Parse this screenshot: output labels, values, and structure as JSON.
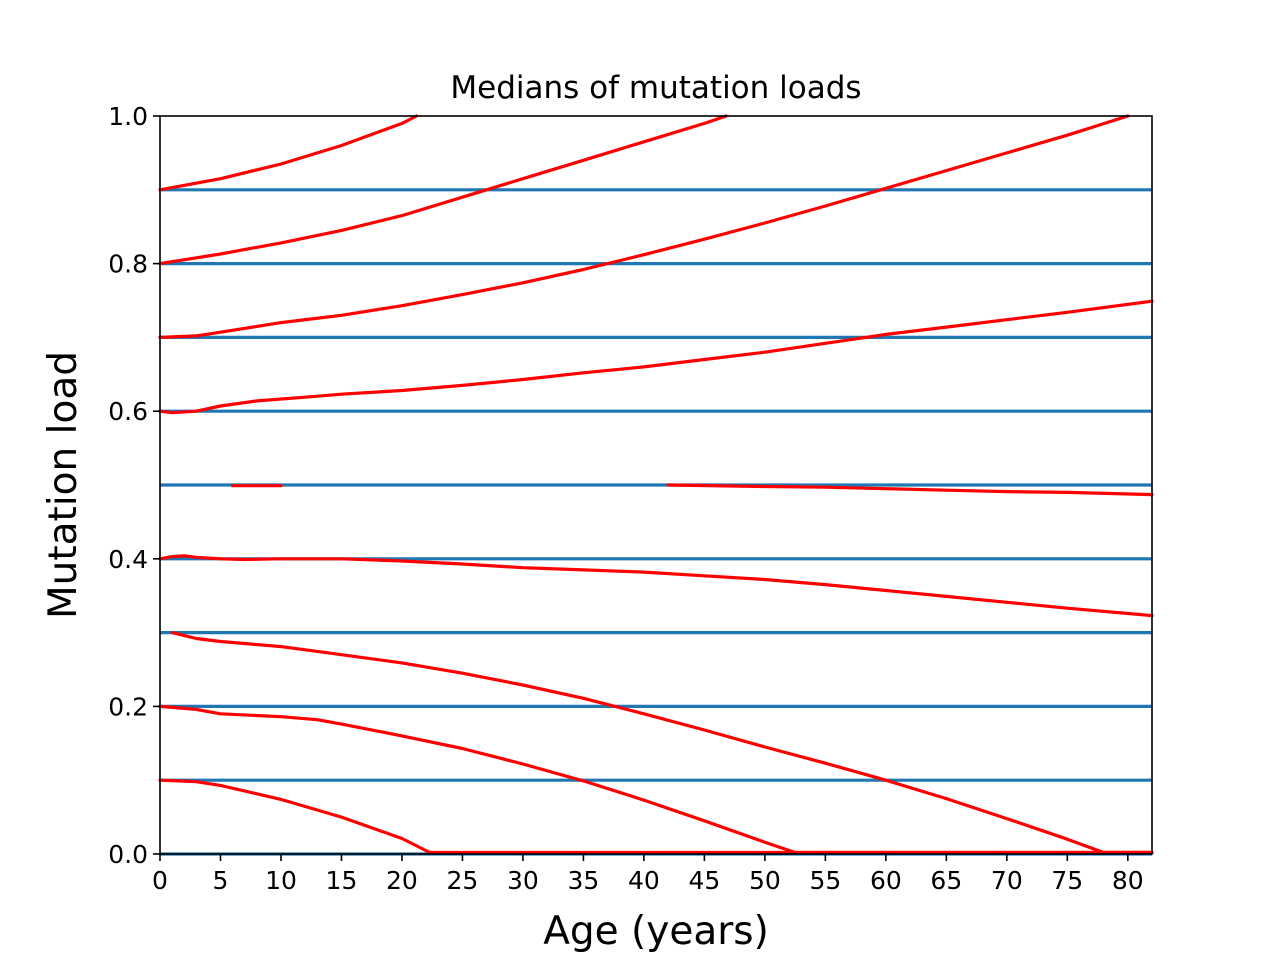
{
  "chart_data": {
    "type": "line",
    "title": "Medians of mutation loads",
    "xlabel": "Age (years)",
    "ylabel": "Mutation load",
    "xlim": [
      0,
      82
    ],
    "ylim": [
      0,
      1
    ],
    "x_ticks": [
      "0",
      "5",
      "10",
      "15",
      "20",
      "25",
      "30",
      "35",
      "40",
      "45",
      "50",
      "55",
      "60",
      "65",
      "70",
      "75",
      "80"
    ],
    "y_ticks": [
      "0.0",
      "0.2",
      "0.4",
      "0.6",
      "0.8",
      "1.0"
    ],
    "x_tick_values": [
      0,
      5,
      10,
      15,
      20,
      25,
      30,
      35,
      40,
      45,
      50,
      55,
      60,
      65,
      70,
      75,
      80
    ],
    "y_tick_values": [
      0,
      0.2,
      0.4,
      0.6,
      0.8,
      1.0
    ],
    "reference_lines": [
      0.0,
      0.1,
      0.2,
      0.3,
      0.4,
      0.5,
      0.6,
      0.7,
      0.8,
      0.9
    ],
    "reference_color": "#1f77b4",
    "series_color": "#ff0000",
    "series": [
      {
        "x": [
          0,
          5,
          10,
          15,
          20,
          21.2
        ],
        "y": [
          0.9,
          0.915,
          0.935,
          0.96,
          0.99,
          1.0
        ]
      },
      {
        "x": [
          0,
          5,
          10,
          15,
          20,
          25,
          30,
          35,
          40,
          45,
          46.8
        ],
        "y": [
          0.8,
          0.813,
          0.828,
          0.845,
          0.865,
          0.89,
          0.915,
          0.94,
          0.965,
          0.99,
          1.0
        ]
      },
      {
        "x": [
          0,
          3,
          5,
          10,
          15,
          20,
          25,
          30,
          35,
          40,
          45,
          50,
          55,
          60,
          65,
          70,
          75,
          80
        ],
        "y": [
          0.7,
          0.702,
          0.707,
          0.72,
          0.73,
          0.743,
          0.758,
          0.774,
          0.792,
          0.812,
          0.833,
          0.855,
          0.878,
          0.902,
          0.926,
          0.95,
          0.974,
          1.0
        ]
      },
      {
        "x": [
          0,
          1,
          3,
          5,
          8,
          12,
          15,
          20,
          25,
          30,
          35,
          40,
          45,
          50,
          55,
          60,
          65,
          70,
          75,
          82
        ],
        "y": [
          0.6,
          0.598,
          0.6,
          0.607,
          0.614,
          0.619,
          0.623,
          0.628,
          0.635,
          0.643,
          0.652,
          0.66,
          0.67,
          0.68,
          0.692,
          0.704,
          0.714,
          0.724,
          0.734,
          0.749
        ]
      },
      {
        "x": [
          6,
          10
        ],
        "y": [
          0.499,
          0.499
        ]
      },
      {
        "x": [
          42,
          50,
          55,
          60,
          65,
          70,
          75,
          82
        ],
        "y": [
          0.5,
          0.498,
          0.497,
          0.495,
          0.493,
          0.491,
          0.49,
          0.487
        ]
      },
      {
        "x": [
          0,
          1,
          2,
          3,
          5,
          7,
          10,
          15,
          20,
          25,
          30,
          35,
          40,
          45,
          50,
          55,
          60,
          65,
          70,
          75,
          82
        ],
        "y": [
          0.4,
          0.403,
          0.404,
          0.402,
          0.4,
          0.399,
          0.4,
          0.4,
          0.397,
          0.393,
          0.388,
          0.385,
          0.382,
          0.377,
          0.372,
          0.365,
          0.357,
          0.349,
          0.341,
          0.333,
          0.323
        ]
      },
      {
        "x": [
          1,
          3,
          5,
          10,
          15,
          20,
          25,
          30,
          35,
          40,
          45,
          50,
          55,
          60,
          65,
          70,
          75,
          78,
          82
        ],
        "y": [
          0.3,
          0.292,
          0.288,
          0.281,
          0.27,
          0.259,
          0.245,
          0.229,
          0.211,
          0.19,
          0.168,
          0.145,
          0.123,
          0.1,
          0.075,
          0.048,
          0.02,
          0.002,
          0.002
        ]
      },
      {
        "x": [
          0,
          3,
          5,
          10,
          13,
          15,
          20,
          25,
          30,
          35,
          40,
          45,
          50,
          52.5,
          55,
          60,
          65,
          70,
          75,
          80,
          82
        ],
        "y": [
          0.2,
          0.196,
          0.19,
          0.186,
          0.182,
          0.176,
          0.16,
          0.143,
          0.122,
          0.099,
          0.073,
          0.045,
          0.016,
          0.002,
          0.002,
          0.002,
          0.002,
          0.002,
          0.002,
          0.002,
          0.002
        ]
      },
      {
        "x": [
          0,
          3,
          5,
          10,
          15,
          20,
          22.3,
          25,
          30,
          40,
          50,
          60,
          70,
          82
        ],
        "y": [
          0.1,
          0.098,
          0.093,
          0.074,
          0.05,
          0.021,
          0.002,
          0.002,
          0.002,
          0.002,
          0.002,
          0.002,
          0.002,
          0.002
        ]
      }
    ]
  }
}
